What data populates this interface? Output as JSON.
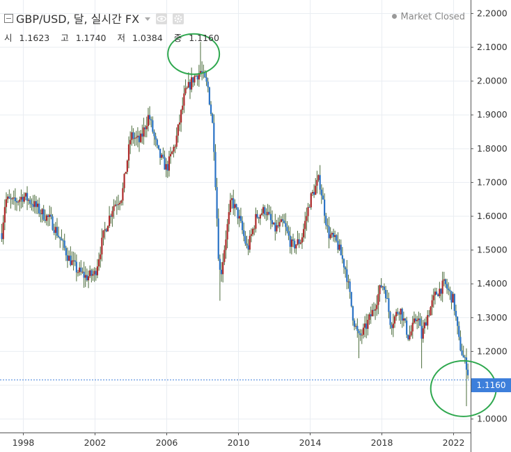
{
  "header": {
    "collapse_icon": "square-minus-icon",
    "title": "GBP/USD, 달, 실시간 FX",
    "dropdown_icon": "caret-down-icon",
    "eye_icon": "eye-icon",
    "gear_icon": "gear-icon",
    "market_status": "Market Closed"
  },
  "ohlc": {
    "open_label": "시",
    "open": "1.1623",
    "high_label": "고",
    "high": "1.1740",
    "low_label": "저",
    "low": "1.0384",
    "close_label": "종",
    "close": "1.1160"
  },
  "last_price": "1.1160",
  "colors": {
    "up": "#ae2a2a",
    "down": "#2b73c6",
    "wick": "#4a6b3a",
    "grid": "#e9edf2",
    "price_line": "#3d7fdb",
    "annotation": "#2fa84f"
  },
  "chart_data": {
    "type": "candlestick",
    "title": "GBP/USD, 달, 실시간 FX",
    "xlabel": "",
    "ylabel": "",
    "x_ticks": [
      "1998",
      "2002",
      "2006",
      "2010",
      "2014",
      "2018",
      "2022"
    ],
    "y_ticks": [
      "2.2000",
      "2.1000",
      "2.0000",
      "1.9000",
      "1.8000",
      "1.7000",
      "1.6000",
      "1.5000",
      "1.4000",
      "1.3000",
      "1.2000",
      "1.1000",
      "1.0000"
    ],
    "ylim": [
      0.96,
      2.24
    ],
    "xlim": [
      1996.7,
      2022.95
    ],
    "grid": true,
    "series": [
      {
        "name": "GBP/USD",
        "x": [
          1996.8,
          1997.0,
          1997.5,
          1998.0,
          1998.5,
          1999.0,
          1999.5,
          2000.0,
          2000.5,
          2001.0,
          2001.5,
          2002.0,
          2002.5,
          2003.0,
          2003.5,
          2004.0,
          2004.5,
          2005.0,
          2005.5,
          2006.0,
          2006.5,
          2007.0,
          2007.5,
          2007.9,
          2008.3,
          2008.6,
          2008.9,
          2009.0,
          2009.3,
          2009.6,
          2010.0,
          2010.5,
          2011.0,
          2011.5,
          2012.0,
          2012.5,
          2013.0,
          2013.5,
          2014.0,
          2014.5,
          2014.6,
          2015.0,
          2015.5,
          2016.0,
          2016.4,
          2016.7,
          2017.0,
          2017.5,
          2018.0,
          2018.2,
          2018.5,
          2019.0,
          2019.5,
          2020.0,
          2020.2,
          2020.5,
          2021.0,
          2021.5,
          2022.0,
          2022.3,
          2022.6,
          2022.75,
          2022.85
        ],
        "close": [
          1.55,
          1.65,
          1.64,
          1.66,
          1.64,
          1.61,
          1.59,
          1.54,
          1.48,
          1.44,
          1.42,
          1.43,
          1.55,
          1.63,
          1.66,
          1.84,
          1.82,
          1.9,
          1.79,
          1.74,
          1.82,
          1.96,
          2.01,
          2.03,
          1.98,
          1.85,
          1.47,
          1.42,
          1.54,
          1.65,
          1.6,
          1.5,
          1.6,
          1.62,
          1.56,
          1.58,
          1.51,
          1.53,
          1.65,
          1.71,
          1.68,
          1.55,
          1.52,
          1.44,
          1.3,
          1.24,
          1.26,
          1.32,
          1.4,
          1.38,
          1.28,
          1.33,
          1.24,
          1.31,
          1.24,
          1.3,
          1.37,
          1.4,
          1.35,
          1.23,
          1.17,
          1.16,
          1.116
        ]
      }
    ]
  }
}
